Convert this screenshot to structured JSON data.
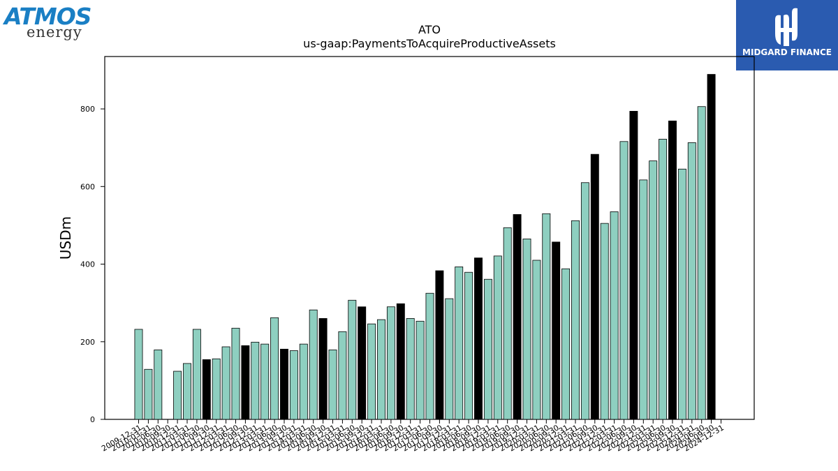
{
  "logos": {
    "atmos_word": "ATMOS",
    "atmos_sub": "energy",
    "midgard_text": "MIDGARD FINANCE",
    "atmos_color": "#1a7fc4",
    "midgard_color": "#2a5bb0"
  },
  "chart_data": {
    "type": "bar",
    "title": "ATO",
    "subtitle": "us-gaap:PaymentsToAcquireProductiveAssets",
    "xlabel": "",
    "ylabel": "USDm",
    "ylim": [
      0,
      935
    ],
    "yticks": [
      0,
      200,
      400,
      600,
      800
    ],
    "grid": false,
    "colors": {
      "quarter": "#8ecfc0",
      "fiscal_year": "#000000",
      "edge": "#000000"
    },
    "categories": [
      "2009-12-31",
      "2010-03-31",
      "2010-06-30",
      "2010-09-30",
      "2010-12-31",
      "2011-03-31",
      "2011-06-30",
      "2011-09-30",
      "2011-12-31",
      "2012-03-31",
      "2012-06-30",
      "2012-09-30",
      "2012-12-31",
      "2013-03-31",
      "2013-06-30",
      "2013-09-30",
      "2013-12-31",
      "2014-03-31",
      "2014-06-30",
      "2014-09-30",
      "2014-12-31",
      "2015-03-31",
      "2015-06-30",
      "2015-09-30",
      "2015-12-31",
      "2016-03-31",
      "2016-06-30",
      "2016-09-30",
      "2016-12-31",
      "2017-03-31",
      "2017-06-30",
      "2017-09-30",
      "2017-12-31",
      "2018-03-31",
      "2018-06-30",
      "2018-09-30",
      "2018-12-31",
      "2019-03-31",
      "2019-06-30",
      "2019-09-30",
      "2019-12-31",
      "2020-03-31",
      "2020-06-30",
      "2020-09-30",
      "2020-12-31",
      "2021-03-31",
      "2021-06-30",
      "2021-09-30",
      "2021-12-31",
      "2022-03-31",
      "2022-06-30",
      "2022-09-30",
      "2022-12-31",
      "2023-03-31",
      "2023-06-30",
      "2023-09-30",
      "2023-12-31",
      "2024-03-31",
      "2024-06-30",
      "2024-09-30",
      "2024-12-31"
    ],
    "values": [
      232,
      129,
      179,
      null,
      124,
      144,
      232,
      154,
      156,
      187,
      235,
      190,
      199,
      194,
      262,
      181,
      177,
      194,
      282,
      260,
      179,
      226,
      307,
      290,
      246,
      257,
      290,
      298,
      260,
      253,
      325,
      383,
      311,
      393,
      379,
      416,
      361,
      421,
      494,
      528,
      465,
      410,
      530,
      457,
      388,
      512,
      610,
      683,
      505,
      535,
      716,
      794,
      617,
      666,
      722,
      769,
      645,
      713,
      806,
      889,
      null
    ],
    "fiscal_year_end": [
      false,
      false,
      false,
      true,
      false,
      false,
      false,
      true,
      false,
      false,
      false,
      true,
      false,
      false,
      false,
      true,
      false,
      false,
      false,
      true,
      false,
      false,
      false,
      true,
      false,
      false,
      false,
      true,
      false,
      false,
      false,
      true,
      false,
      false,
      false,
      true,
      false,
      false,
      false,
      true,
      false,
      false,
      false,
      true,
      false,
      false,
      false,
      true,
      false,
      false,
      false,
      true,
      false,
      false,
      false,
      true,
      false,
      false,
      false,
      true,
      false
    ]
  }
}
